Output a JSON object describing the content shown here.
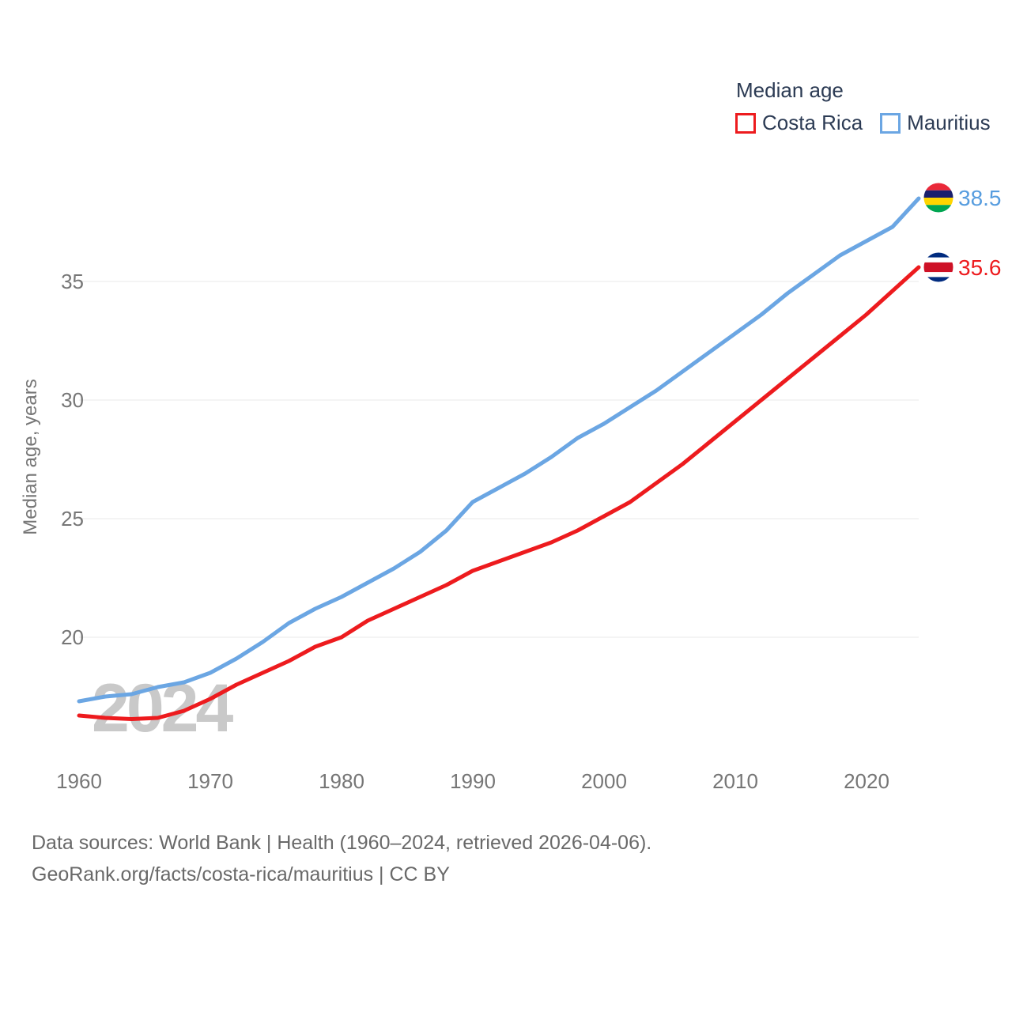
{
  "legend": {
    "title": "Median age",
    "items": [
      {
        "label": "Costa Rica",
        "color": "#ed1b1e"
      },
      {
        "label": "Mauritius",
        "color": "#6ba6e3"
      }
    ]
  },
  "watermark": "2024",
  "chart_data": {
    "type": "line",
    "title": "Median age",
    "xlabel": "",
    "ylabel": "Median age, years",
    "x_range": [
      1960,
      2024
    ],
    "ylim": [
      16,
      39.5
    ],
    "grid": "horizontal",
    "legend_position": "top-right",
    "ytick_labels": [
      "20",
      "25",
      "30",
      "35"
    ],
    "xtick_labels": [
      "1960",
      "1970",
      "1980",
      "1990",
      "2000",
      "2010",
      "2020"
    ],
    "x": [
      1960,
      1962,
      1964,
      1966,
      1968,
      1970,
      1972,
      1974,
      1976,
      1978,
      1980,
      1982,
      1984,
      1986,
      1988,
      1990,
      1992,
      1994,
      1996,
      1998,
      2000,
      2002,
      2004,
      2006,
      2008,
      2010,
      2012,
      2014,
      2016,
      2018,
      2020,
      2022,
      2024
    ],
    "series": [
      {
        "name": "Costa Rica",
        "color": "#ed1b1e",
        "label_color": "#ed1b1e",
        "end_label": "35.6",
        "flag_name": "costa-rica-flag",
        "flag": [
          "#002b7f",
          "#ffffff",
          "#ce1126",
          "#ffffff",
          "#002b7f"
        ],
        "values": [
          16.7,
          16.6,
          16.55,
          16.6,
          16.9,
          17.4,
          18.0,
          18.5,
          19.0,
          19.6,
          20.0,
          20.7,
          21.2,
          21.7,
          22.2,
          22.8,
          23.2,
          23.6,
          24.0,
          24.5,
          25.1,
          25.7,
          26.5,
          27.3,
          28.2,
          29.1,
          30.0,
          30.9,
          31.8,
          32.7,
          33.6,
          34.6,
          35.6
        ]
      },
      {
        "name": "Mauritius",
        "color": "#6ba6e3",
        "label_color": "#579ddf",
        "end_label": "38.5",
        "flag_name": "mauritius-flag",
        "flag": [
          "#ea2839",
          "#1a206d",
          "#ffd500",
          "#00a551"
        ],
        "values": [
          17.3,
          17.5,
          17.6,
          17.9,
          18.1,
          18.5,
          19.1,
          19.8,
          20.6,
          21.2,
          21.7,
          22.3,
          22.9,
          23.6,
          24.5,
          25.7,
          26.3,
          26.9,
          27.6,
          28.4,
          29.0,
          29.7,
          30.4,
          31.2,
          32.0,
          32.8,
          33.6,
          34.5,
          35.3,
          36.1,
          36.7,
          37.3,
          38.5
        ]
      }
    ]
  },
  "footer": {
    "line1": "Data sources: World Bank | Health (1960–2024, retrieved 2026-04-06).",
    "line2": "GeoRank.org/facts/costa-rica/mauritius | CC BY"
  }
}
